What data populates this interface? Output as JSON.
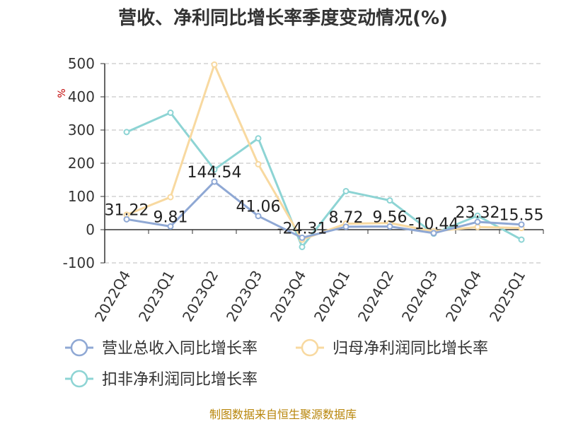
{
  "chart_data": {
    "type": "line",
    "title": "营收、净利同比增长率季度变动情况(%)",
    "ylabel": "%",
    "categories": [
      "2022Q4",
      "2023Q1",
      "2023Q2",
      "2023Q3",
      "2023Q4",
      "2024Q1",
      "2024Q2",
      "2024Q3",
      "2024Q4",
      "2025Q1"
    ],
    "ylim": [
      -100,
      500
    ],
    "yticks": [
      -100,
      0,
      100,
      200,
      300,
      400,
      500
    ],
    "grid": true,
    "legend_position": "bottom",
    "series": [
      {
        "name": "营业总收入同比增长率",
        "color": "#8fa8d4",
        "values": [
          31.22,
          9.81,
          144.54,
          41.06,
          -24.31,
          8.72,
          9.56,
          -10.44,
          23.32,
          15.55
        ],
        "labels": [
          "31.22",
          "9.81",
          "144.54",
          "41.06",
          "-24.31",
          "8.72",
          "9.56",
          "-10.44",
          "23.32",
          "15.55"
        ]
      },
      {
        "name": "归母净利润同比增长率",
        "color": "#f8d9a0",
        "values": [
          45,
          98,
          497,
          197,
          -30,
          18,
          20,
          -5,
          8,
          5
        ]
      },
      {
        "name": "扣非净利润同比增长率",
        "color": "#8dd4d4",
        "values": [
          294,
          352,
          181,
          275,
          -52,
          116,
          88,
          -12,
          42,
          -30
        ]
      }
    ]
  },
  "source": "制图数据来自恒生聚源数据库"
}
